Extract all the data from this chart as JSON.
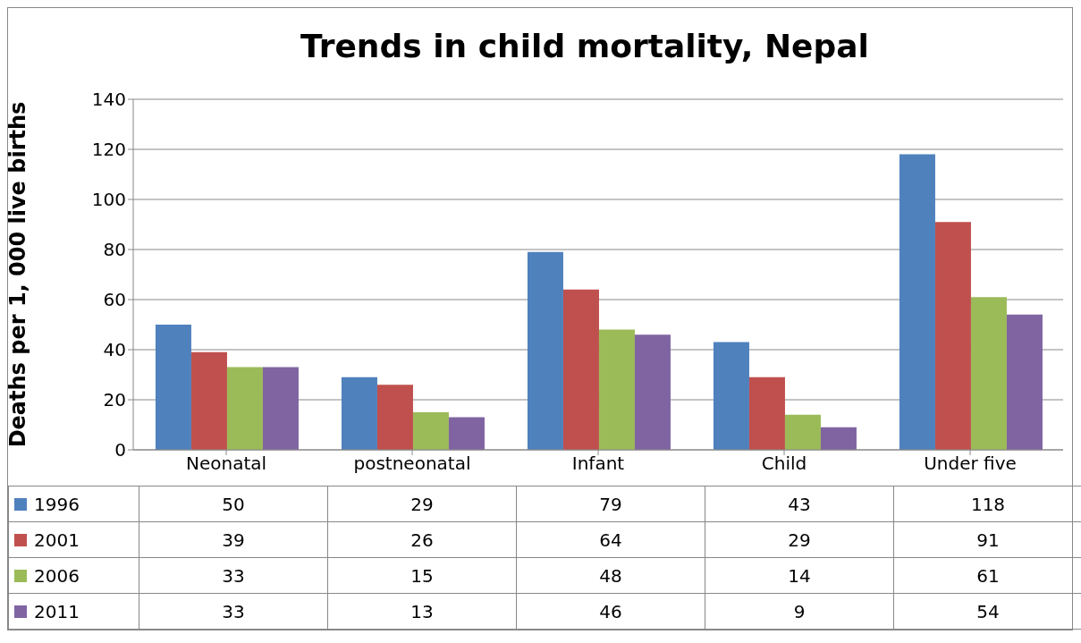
{
  "chart_data": {
    "type": "bar",
    "title": "Trends in child mortality, Nepal",
    "ylabel": "Deaths per 1, 000 live births",
    "categories": [
      "Neonatal",
      "postneonatal",
      "Infant",
      "Child",
      "Under five"
    ],
    "series": [
      {
        "name": "1996",
        "color": "#4f81bd",
        "values": [
          50,
          29,
          79,
          43,
          118
        ]
      },
      {
        "name": "2001",
        "color": "#c0504d",
        "values": [
          39,
          26,
          64,
          29,
          91
        ]
      },
      {
        "name": "2006",
        "color": "#9bbb59",
        "values": [
          33,
          15,
          48,
          14,
          61
        ]
      },
      {
        "name": "2011",
        "color": "#8064a2",
        "values": [
          33,
          13,
          46,
          9,
          54
        ]
      }
    ],
    "ylim": [
      0,
      140
    ],
    "yticks": [
      0,
      20,
      40,
      60,
      80,
      100,
      120,
      140
    ],
    "grid": "y",
    "legend": "bottom",
    "data_labels": true
  }
}
